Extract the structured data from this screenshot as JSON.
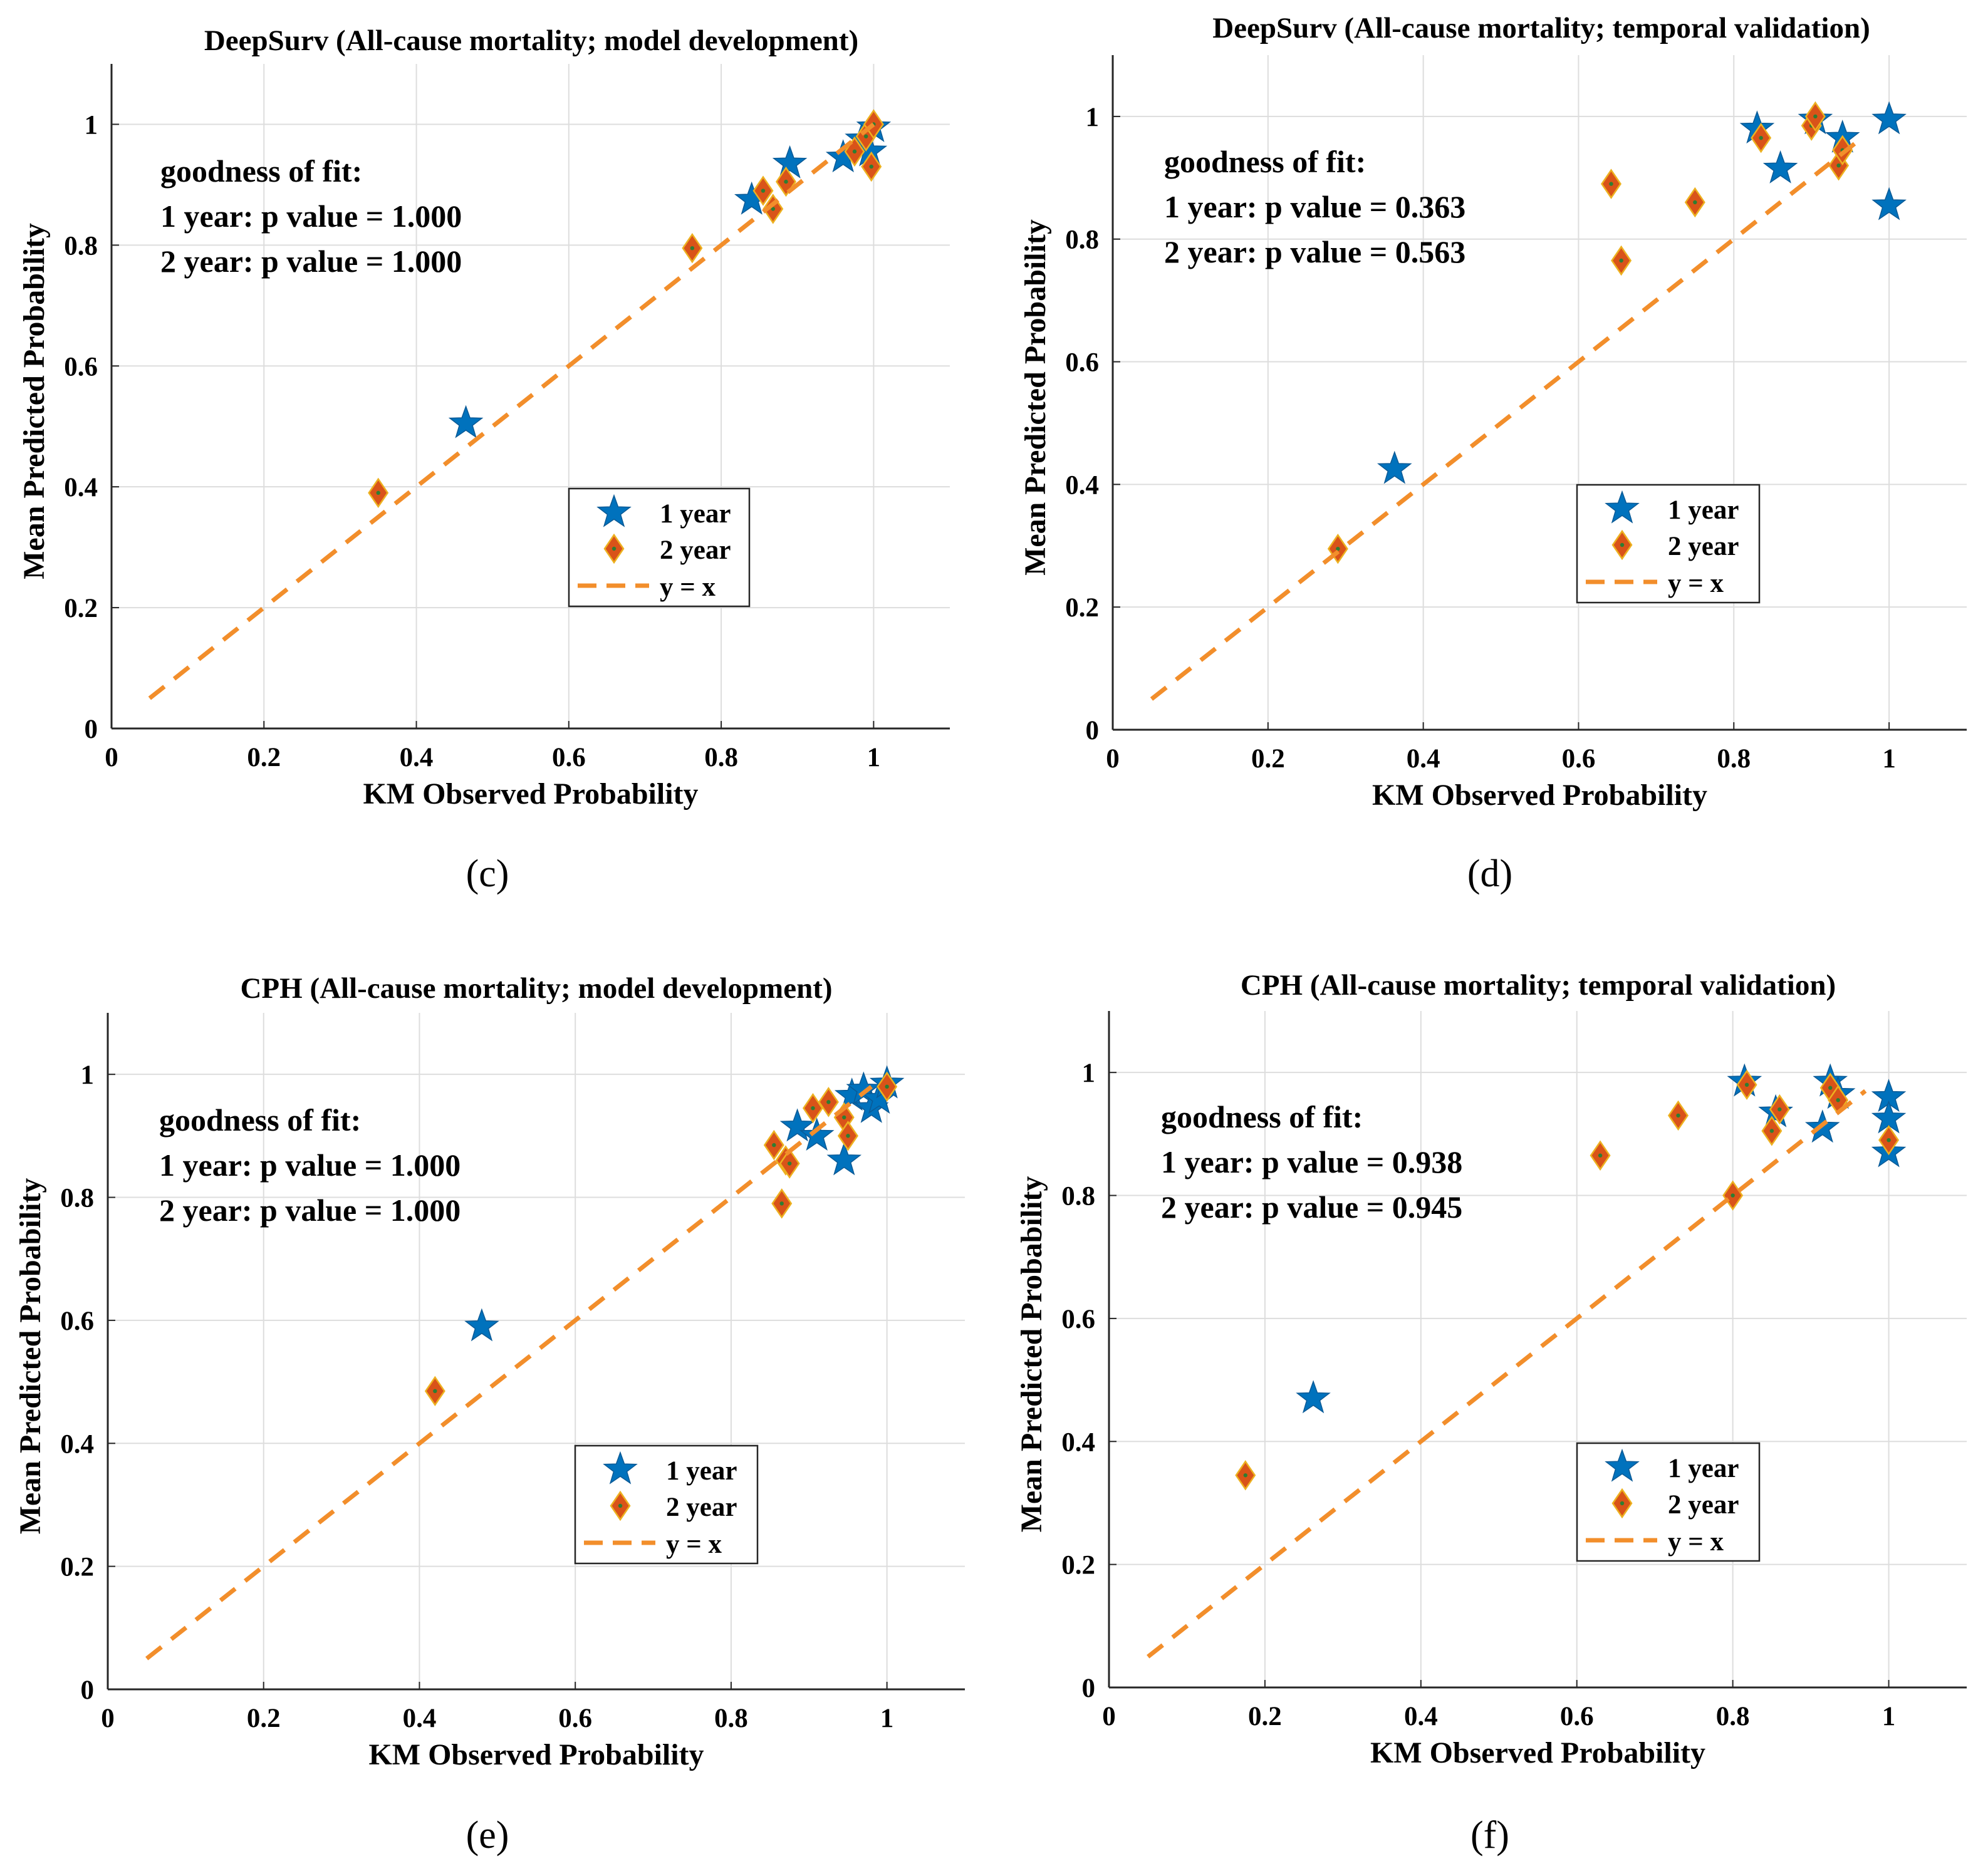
{
  "colors": {
    "star": "#0072BD",
    "diamond_fill": "#D95319",
    "diamond_edge": "#EDB120",
    "diamond_dot": "#2E7D32",
    "line": "#F28E2B",
    "grid": "#DDDDDD",
    "axis": "#262626"
  },
  "chart_data": [
    {
      "type": "scatter",
      "panel": "(c)",
      "title": "DeepSurv (All-cause mortality; model development)",
      "xlabel": "KM Observed Probability",
      "ylabel": "Mean Predicted Probability",
      "xlim": [
        0,
        1.1
      ],
      "ylim": [
        0,
        1.1
      ],
      "xticks": [
        0,
        0.2,
        0.4,
        0.6,
        0.8,
        1
      ],
      "xtick_labels": [
        "0",
        "0.2",
        "0.4",
        "0.6",
        "0.8",
        "1"
      ],
      "yticks": [
        0,
        0.2,
        0.4,
        0.6,
        0.8,
        1
      ],
      "ytick_labels": [
        "0",
        "0.2",
        "0.4",
        "0.6",
        "0.8",
        "1"
      ],
      "grid": true,
      "annotation": [
        "goodness of fit:",
        "1 year: p value = 1.000",
        "2 year: p value = 1.000"
      ],
      "legend": [
        "1 year",
        "2 year",
        "y = x"
      ],
      "legend_position": "center-right",
      "series": [
        {
          "name": "1 year",
          "marker": "star",
          "x": [
            0.465,
            0.84,
            0.89,
            0.96,
            0.985,
            1.0,
            0.995
          ],
          "y": [
            0.505,
            0.875,
            0.935,
            0.945,
            0.975,
            0.995,
            0.955
          ]
        },
        {
          "name": "2 year",
          "marker": "diamond",
          "x": [
            0.35,
            0.762,
            0.855,
            0.868,
            0.885,
            0.975,
            0.99,
            0.997,
            1.0
          ],
          "y": [
            0.39,
            0.795,
            0.89,
            0.86,
            0.905,
            0.955,
            0.98,
            0.93,
            1.0
          ]
        },
        {
          "name": "y = x",
          "type": "line",
          "style": "dashed",
          "x": [
            0.05,
            1.0
          ],
          "y": [
            0.05,
            1.0
          ]
        }
      ]
    },
    {
      "type": "scatter",
      "panel": "(d)",
      "title": "DeepSurv (All-cause mortality; temporal validation)",
      "xlabel": "KM Observed Probability",
      "ylabel": "Mean Predicted Probability",
      "xlim": [
        0,
        1.1
      ],
      "ylim": [
        0,
        1.1
      ],
      "xticks": [
        0,
        0.2,
        0.4,
        0.6,
        0.8,
        1
      ],
      "xtick_labels": [
        "0",
        "0.2",
        "0.4",
        "0.6",
        "0.8",
        "1"
      ],
      "yticks": [
        0,
        0.2,
        0.4,
        0.6,
        0.8,
        1
      ],
      "ytick_labels": [
        "0",
        "0.2",
        "0.4",
        "0.6",
        "0.8",
        "1"
      ],
      "grid": true,
      "annotation": [
        "goodness of fit:",
        "1 year: p value = 0.363",
        "2 year: p value = 0.563"
      ],
      "legend": [
        "1 year",
        "2 year",
        "y = x"
      ],
      "legend_position": "center-right",
      "series": [
        {
          "name": "1 year",
          "marker": "star",
          "x": [
            0.363,
            0.83,
            0.86,
            0.905,
            0.94,
            1.0,
            1.0
          ],
          "y": [
            0.425,
            0.98,
            0.915,
            0.995,
            0.965,
            0.995,
            0.855
          ]
        },
        {
          "name": "2 year",
          "marker": "diamond",
          "x": [
            0.29,
            0.642,
            0.655,
            0.75,
            0.835,
            0.9,
            0.905,
            0.935,
            0.94
          ],
          "y": [
            0.295,
            0.89,
            0.765,
            0.86,
            0.965,
            0.985,
            1.0,
            0.92,
            0.945
          ]
        },
        {
          "name": "y = x",
          "type": "line",
          "style": "dashed",
          "x": [
            0.05,
            0.96
          ],
          "y": [
            0.05,
            0.96
          ]
        }
      ]
    },
    {
      "type": "scatter",
      "panel": "(e)",
      "title": "CPH (All-cause mortality; model development)",
      "xlabel": "KM Observed Probability",
      "ylabel": "Mean Predicted Probability",
      "xlim": [
        0,
        1.1
      ],
      "ylim": [
        0,
        1.1
      ],
      "xticks": [
        0,
        0.2,
        0.4,
        0.6,
        0.8,
        1
      ],
      "xtick_labels": [
        "0",
        "0.2",
        "0.4",
        "0.6",
        "0.8",
        "1"
      ],
      "yticks": [
        0,
        0.2,
        0.4,
        0.6,
        0.8,
        1
      ],
      "ytick_labels": [
        "0",
        "0.2",
        "0.4",
        "0.6",
        "0.8",
        "1"
      ],
      "grid": true,
      "annotation": [
        "goodness of fit:",
        "1 year: p value = 1.000",
        "2 year: p value = 1.000"
      ],
      "legend": [
        "1 year",
        "2 year",
        "y = x"
      ],
      "legend_position": "center-right",
      "series": [
        {
          "name": "1 year",
          "marker": "star",
          "x": [
            0.48,
            0.885,
            0.91,
            0.945,
            0.955,
            0.97,
            0.98,
            0.99,
            1.0
          ],
          "y": [
            0.59,
            0.915,
            0.9,
            0.86,
            0.965,
            0.975,
            0.945,
            0.96,
            0.985
          ]
        },
        {
          "name": "2 year",
          "marker": "diamond",
          "x": [
            0.42,
            0.855,
            0.865,
            0.87,
            0.875,
            0.905,
            0.925,
            0.945,
            0.95,
            1.0
          ],
          "y": [
            0.485,
            0.885,
            0.79,
            0.86,
            0.855,
            0.945,
            0.955,
            0.93,
            0.9,
            0.98
          ]
        },
        {
          "name": "y = x",
          "type": "line",
          "style": "dashed",
          "x": [
            0.05,
            0.98
          ],
          "y": [
            0.05,
            0.98
          ]
        }
      ]
    },
    {
      "type": "scatter",
      "panel": "(f)",
      "title": "CPH (All-cause mortality; temporal validation)",
      "xlabel": "KM Observed Probability",
      "ylabel": "Mean Predicted Probability",
      "xlim": [
        0,
        1.1
      ],
      "ylim": [
        0,
        1.1
      ],
      "xticks": [
        0,
        0.2,
        0.4,
        0.6,
        0.8,
        1
      ],
      "xtick_labels": [
        "0",
        "0.2",
        "0.4",
        "0.6",
        "0.8",
        "1"
      ],
      "yticks": [
        0,
        0.2,
        0.4,
        0.6,
        0.8,
        1
      ],
      "ytick_labels": [
        "0",
        "0.2",
        "0.4",
        "0.6",
        "0.8",
        "1"
      ],
      "grid": true,
      "annotation": [
        "goodness of fit:",
        "1 year: p value = 0.938",
        "2 year: p value = 0.945"
      ],
      "legend": [
        "1 year",
        "2 year",
        "y = x"
      ],
      "legend_position": "center-right",
      "series": [
        {
          "name": "1 year",
          "marker": "star",
          "x": [
            0.262,
            0.815,
            0.855,
            0.915,
            0.925,
            0.935,
            1.0,
            1.0,
            1.0
          ],
          "y": [
            0.47,
            0.985,
            0.935,
            0.91,
            0.985,
            0.965,
            0.96,
            0.925,
            0.87
          ]
        },
        {
          "name": "2 year",
          "marker": "diamond",
          "x": [
            0.175,
            0.63,
            0.73,
            0.8,
            0.818,
            0.85,
            0.86,
            0.925,
            0.935,
            1.0
          ],
          "y": [
            0.345,
            0.865,
            0.93,
            0.8,
            0.98,
            0.905,
            0.94,
            0.975,
            0.955,
            0.89
          ]
        },
        {
          "name": "y = x",
          "type": "line",
          "style": "dashed",
          "x": [
            0.05,
            0.97
          ],
          "y": [
            0.05,
            0.97
          ]
        }
      ]
    }
  ]
}
